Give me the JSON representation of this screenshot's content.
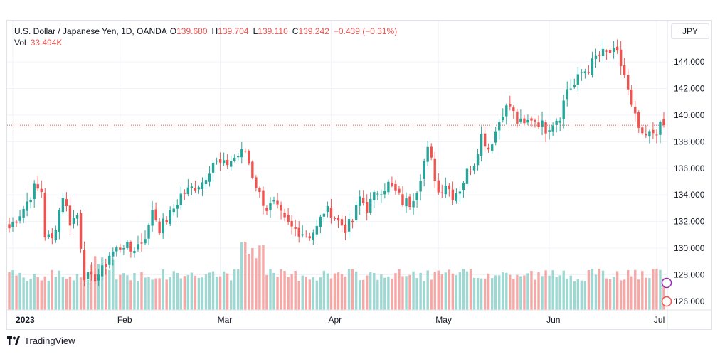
{
  "legend": {
    "symbol": "U.S. Dollar / Japanese Yen, 1D, OANDA",
    "open_label": "O",
    "open": "139.680",
    "high_label": "H",
    "high": "139.704",
    "low_label": "L",
    "low": "139.110",
    "close_label": "C",
    "close": "139.242",
    "change": "−0.439 (−0.31%)",
    "vol_label": "Vol",
    "vol": "33.494K"
  },
  "currency_button": "JPY",
  "brand": "TradingView",
  "colors": {
    "up": "#26a69a",
    "down": "#ef5350",
    "vol_up": "#9ed8d2",
    "vol_down": "#f5a8a6",
    "grid": "#f0f3fa",
    "price_line": "#ef5350"
  },
  "icons": [
    "tradingview-logo-icon",
    "settings-circle-icon",
    "alert-circle-icon"
  ],
  "chart_data": {
    "type": "candlestick",
    "y_axis": {
      "side": "right",
      "ticks": [
        "144.000",
        "142.000",
        "140.000",
        "138.000",
        "136.000",
        "134.000",
        "132.000",
        "130.000",
        "128.000",
        "126.000"
      ],
      "range": [
        125.5,
        145.8
      ]
    },
    "x_axis": {
      "ticks": [
        "2023",
        "Feb",
        "Mar",
        "Apr",
        "May",
        "Jun",
        "Jul"
      ]
    },
    "last_close": 139.242,
    "grid": true,
    "anchors": [
      {
        "d": 0,
        "c": 131.5
      },
      {
        "d": 4,
        "c": 133.0
      },
      {
        "d": 7,
        "c": 134.5
      },
      {
        "d": 9,
        "c": 134.3
      },
      {
        "d": 10,
        "c": 131.0
      },
      {
        "d": 12,
        "c": 130.6
      },
      {
        "d": 15,
        "c": 134.0
      },
      {
        "d": 17,
        "c": 132.0
      },
      {
        "d": 19,
        "c": 132.5
      },
      {
        "d": 21,
        "c": 128.0
      },
      {
        "d": 23,
        "c": 127.6
      },
      {
        "d": 26,
        "c": 128.3
      },
      {
        "d": 28,
        "c": 129.5
      },
      {
        "d": 32,
        "c": 130.3
      },
      {
        "d": 34,
        "c": 129.8
      },
      {
        "d": 37,
        "c": 130.5
      },
      {
        "d": 39,
        "c": 131.5
      },
      {
        "d": 40,
        "c": 133.0
      },
      {
        "d": 42,
        "c": 131.5
      },
      {
        "d": 45,
        "c": 132.5
      },
      {
        "d": 48,
        "c": 134.0
      },
      {
        "d": 51,
        "c": 134.5
      },
      {
        "d": 54,
        "c": 135.0
      },
      {
        "d": 57,
        "c": 136.5
      },
      {
        "d": 60,
        "c": 136.2
      },
      {
        "d": 63,
        "c": 136.8
      },
      {
        "d": 66,
        "c": 137.3
      },
      {
        "d": 68,
        "c": 135.5
      },
      {
        "d": 70,
        "c": 134.0
      },
      {
        "d": 72,
        "c": 133.0
      },
      {
        "d": 74,
        "c": 133.3
      },
      {
        "d": 77,
        "c": 132.0
      },
      {
        "d": 79,
        "c": 131.5
      },
      {
        "d": 82,
        "c": 131.2
      },
      {
        "d": 84,
        "c": 131.0
      },
      {
        "d": 86,
        "c": 131.5
      },
      {
        "d": 88,
        "c": 132.8
      },
      {
        "d": 90,
        "c": 132.7
      },
      {
        "d": 92,
        "c": 132.0
      },
      {
        "d": 94,
        "c": 131.5
      },
      {
        "d": 96,
        "c": 132.0
      },
      {
        "d": 98,
        "c": 133.8
      },
      {
        "d": 100,
        "c": 133.0
      },
      {
        "d": 103,
        "c": 134.3
      },
      {
        "d": 106,
        "c": 134.8
      },
      {
        "d": 108,
        "c": 134.2
      },
      {
        "d": 110,
        "c": 133.5
      },
      {
        "d": 112,
        "c": 133.4
      },
      {
        "d": 114,
        "c": 134.5
      },
      {
        "d": 116,
        "c": 136.5
      },
      {
        "d": 117,
        "c": 137.3
      },
      {
        "d": 118,
        "c": 136.5
      },
      {
        "d": 120,
        "c": 134.2
      },
      {
        "d": 122,
        "c": 134.9
      },
      {
        "d": 124,
        "c": 134.0
      },
      {
        "d": 126,
        "c": 134.5
      },
      {
        "d": 128,
        "c": 135.7
      },
      {
        "d": 130,
        "c": 136.5
      },
      {
        "d": 132,
        "c": 138.5
      },
      {
        "d": 134,
        "c": 137.5
      },
      {
        "d": 136,
        "c": 138.8
      },
      {
        "d": 138,
        "c": 140.3
      },
      {
        "d": 140,
        "c": 140.7
      },
      {
        "d": 142,
        "c": 139.5
      },
      {
        "d": 144,
        "c": 139.2
      },
      {
        "d": 146,
        "c": 139.8
      },
      {
        "d": 148,
        "c": 139.5
      },
      {
        "d": 150,
        "c": 139.0
      },
      {
        "d": 152,
        "c": 139.5
      },
      {
        "d": 154,
        "c": 140.0
      },
      {
        "d": 156,
        "c": 142.0
      },
      {
        "d": 158,
        "c": 142.2
      },
      {
        "d": 160,
        "c": 143.2
      },
      {
        "d": 162,
        "c": 143.5
      },
      {
        "d": 164,
        "c": 144.3
      },
      {
        "d": 166,
        "c": 144.6
      },
      {
        "d": 168,
        "c": 144.7
      },
      {
        "d": 170,
        "c": 144.5
      },
      {
        "d": 172,
        "c": 143.0
      },
      {
        "d": 174,
        "c": 140.5
      },
      {
        "d": 176,
        "c": 139.0
      },
      {
        "d": 177,
        "c": 138.2
      },
      {
        "d": 179,
        "c": 138.5
      },
      {
        "d": 181,
        "c": 138.9
      },
      {
        "d": 183,
        "c": 139.242
      }
    ]
  }
}
